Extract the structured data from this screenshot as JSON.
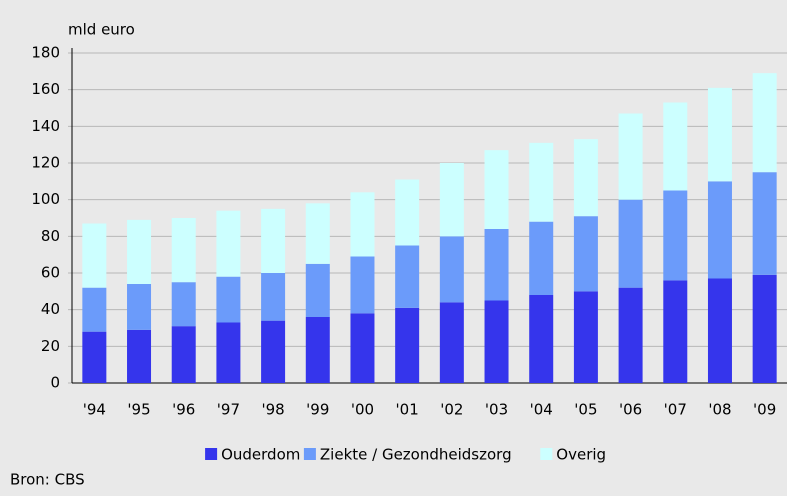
{
  "chart_data": {
    "type": "stacked-bar",
    "y_label": "mld euro",
    "source": "Bron: CBS",
    "categories": [
      "'94",
      "'95",
      "'96",
      "'97",
      "'98",
      "'99",
      "'00",
      "'01",
      "'02",
      "'03",
      "'04",
      "'05",
      "'06",
      "'07",
      "'08",
      "'09"
    ],
    "series": [
      {
        "name": "Ouderdom",
        "color": "#3535ec",
        "values": [
          28,
          29,
          31,
          33,
          34,
          36,
          38,
          41,
          44,
          45,
          48,
          50,
          52,
          56,
          57,
          59
        ]
      },
      {
        "name": "Ziekte / Gezondheidszorg",
        "color": "#6b9bfa",
        "values": [
          24,
          25,
          24,
          25,
          26,
          29,
          31,
          34,
          36,
          39,
          40,
          41,
          48,
          49,
          53,
          56
        ]
      },
      {
        "name": "Overig",
        "color": "#ccffff",
        "values": [
          35,
          35,
          35,
          36,
          35,
          33,
          35,
          36,
          40,
          43,
          43,
          42,
          47,
          48,
          51,
          54
        ]
      }
    ],
    "ylim": [
      0,
      180
    ],
    "yticks": [
      0,
      20,
      40,
      60,
      80,
      100,
      120,
      140,
      160,
      180
    ],
    "grid": true
  }
}
